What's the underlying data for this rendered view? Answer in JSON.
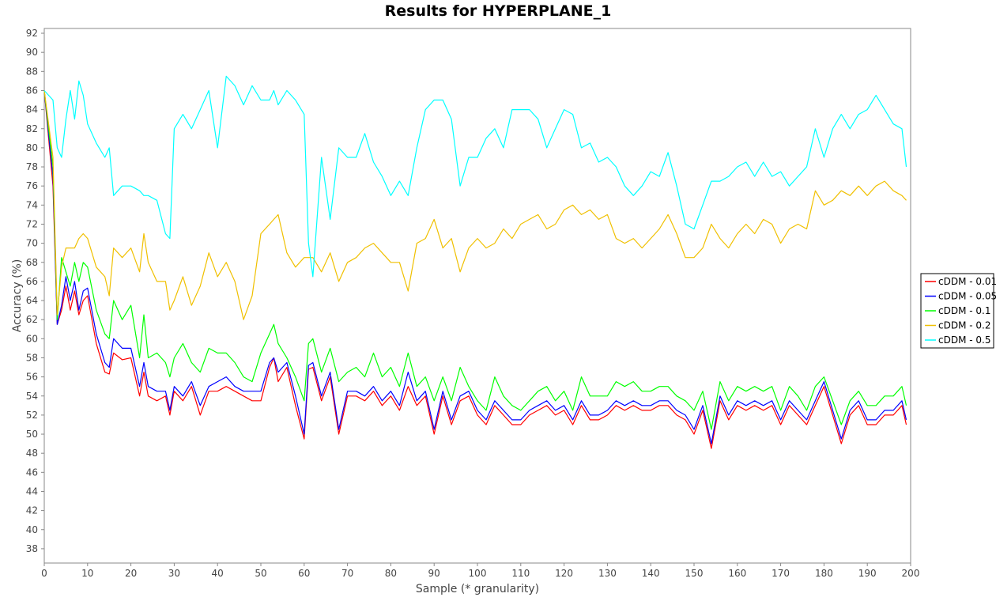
{
  "chart_data": {
    "type": "line",
    "title": "Results for HYPERPLANE_1",
    "xlabel": "Sample (* granularity)",
    "ylabel": "Accuracy (%)",
    "xlim": [
      0,
      200
    ],
    "ylim": [
      36.5,
      92.5
    ],
    "xticks": [
      0,
      10,
      20,
      30,
      40,
      50,
      60,
      70,
      80,
      90,
      100,
      110,
      120,
      130,
      140,
      150,
      160,
      170,
      180,
      190,
      200
    ],
    "yticks": [
      38,
      40,
      42,
      44,
      46,
      48,
      50,
      52,
      54,
      56,
      58,
      60,
      62,
      64,
      66,
      68,
      70,
      72,
      74,
      76,
      78,
      80,
      82,
      84,
      86,
      88,
      90,
      92
    ],
    "grid": false,
    "legend_position": "right",
    "x": [
      0,
      2,
      3,
      4,
      5,
      6,
      7,
      8,
      9,
      10,
      12,
      14,
      15,
      16,
      18,
      20,
      22,
      23,
      24,
      26,
      28,
      29,
      30,
      32,
      34,
      36,
      38,
      40,
      42,
      44,
      46,
      48,
      50,
      52,
      53,
      54,
      56,
      58,
      60,
      61,
      62,
      64,
      66,
      68,
      70,
      72,
      74,
      76,
      78,
      80,
      82,
      84,
      86,
      88,
      90,
      92,
      94,
      96,
      98,
      100,
      102,
      104,
      106,
      108,
      110,
      112,
      114,
      116,
      118,
      120,
      122,
      124,
      126,
      128,
      130,
      132,
      134,
      136,
      138,
      140,
      142,
      144,
      146,
      148,
      150,
      152,
      154,
      156,
      158,
      160,
      162,
      164,
      166,
      168,
      170,
      172,
      174,
      176,
      178,
      180,
      182,
      184,
      186,
      188,
      190,
      192,
      194,
      196,
      198,
      199
    ],
    "series": [
      {
        "name": "cDDM - 0.01",
        "color": "#ff0000",
        "values": [
          86,
          76,
          61.5,
          63,
          65.5,
          63,
          65,
          62.5,
          64,
          64.5,
          59.5,
          56.5,
          56.3,
          58.5,
          57.8,
          58,
          54,
          56.5,
          54,
          53.5,
          54,
          52,
          54.5,
          53.5,
          55,
          52,
          54.5,
          54.5,
          55,
          54.5,
          54,
          53.5,
          53.5,
          57,
          58,
          55.5,
          57,
          53,
          49.5,
          56.8,
          57,
          53.5,
          56,
          50,
          54,
          54,
          53.5,
          54.5,
          53,
          54,
          52.5,
          55,
          53,
          54,
          50,
          54,
          51,
          53.5,
          54,
          52,
          51,
          53,
          52,
          51,
          51,
          52,
          52.5,
          53,
          52,
          52.5,
          51,
          53,
          51.5,
          51.5,
          52,
          53,
          52.5,
          53,
          52.5,
          52.5,
          53,
          53,
          52,
          51.5,
          50,
          52.5,
          48.5,
          53.5,
          51.5,
          53,
          52.5,
          53,
          52.5,
          53,
          51,
          53,
          52,
          51,
          53,
          55,
          52,
          49,
          52,
          53,
          51,
          51,
          52,
          52,
          53,
          51
        ]
      },
      {
        "name": "cDDM - 0.05",
        "color": "#0000ff",
        "values": [
          86,
          77,
          61.5,
          63.5,
          66.5,
          64,
          66,
          63,
          65,
          65.3,
          60.5,
          57.5,
          57,
          60,
          59,
          59,
          55,
          57.5,
          55,
          54.5,
          54.5,
          52.5,
          55,
          54,
          55.5,
          53,
          55,
          55.5,
          56,
          55,
          54.5,
          54.5,
          54.5,
          57.5,
          58,
          56.5,
          57.5,
          54,
          50,
          57.2,
          57.5,
          54,
          56.5,
          50.5,
          54.5,
          54.5,
          54,
          55,
          53.5,
          54.5,
          53,
          56.5,
          53.5,
          54.5,
          50.5,
          54.5,
          51.5,
          54,
          54.5,
          52.5,
          51.5,
          53.5,
          52.5,
          51.5,
          51.5,
          52.5,
          53,
          53.5,
          52.5,
          53,
          51.5,
          53.5,
          52,
          52,
          52.5,
          53.5,
          53,
          53.5,
          53,
          53,
          53.5,
          53.5,
          52.5,
          52,
          50.5,
          53,
          49,
          54,
          52,
          53.5,
          53,
          53.5,
          53,
          53.5,
          51.5,
          53.5,
          52.5,
          51.5,
          53.5,
          55.5,
          52.5,
          49.5,
          52.5,
          53.5,
          51.5,
          51.5,
          52.5,
          52.5,
          53.5,
          51.5
        ]
      },
      {
        "name": "cDDM - 0.1",
        "color": "#00ff00",
        "values": [
          86,
          78,
          62,
          68.5,
          67,
          65.5,
          68,
          66,
          68,
          67.5,
          63,
          60.5,
          60,
          64,
          62,
          63.5,
          58,
          62.5,
          58,
          58.5,
          57.5,
          56,
          58,
          59.5,
          57.5,
          56.5,
          59,
          58.5,
          58.5,
          57.5,
          56,
          55.5,
          58.5,
          60.5,
          61.5,
          59.5,
          58,
          56,
          53.5,
          59.5,
          60,
          56.5,
          59,
          55.5,
          56.5,
          57,
          56,
          58.5,
          56,
          57,
          55,
          58.5,
          55,
          56,
          53.5,
          56,
          53.5,
          57,
          55,
          53.5,
          52.5,
          56,
          54,
          53,
          52.5,
          53.5,
          54.5,
          55,
          53.5,
          54.5,
          52.5,
          56,
          54,
          54,
          54,
          55.5,
          55,
          55.5,
          54.5,
          54.5,
          55,
          55,
          54,
          53.5,
          52.5,
          54.5,
          50.5,
          55.5,
          53.5,
          55,
          54.5,
          55,
          54.5,
          55,
          52.5,
          55,
          54,
          52.5,
          55,
          56,
          53.5,
          51,
          53.5,
          54.5,
          53,
          53,
          54,
          54,
          55,
          53
        ]
      },
      {
        "name": "cDDM - 0.2",
        "color": "#f0c000",
        "values": [
          86,
          79,
          62.5,
          67.5,
          69.5,
          69.5,
          69.5,
          70.5,
          71,
          70.5,
          67.5,
          66.5,
          64.5,
          69.5,
          68.5,
          69.5,
          67,
          71,
          68,
          66,
          66,
          63,
          64,
          66.5,
          63.5,
          65.5,
          69,
          66.5,
          68,
          66,
          62,
          64.5,
          71,
          72,
          72.5,
          73,
          69,
          67.5,
          68.5,
          68.5,
          68.5,
          67,
          69,
          66,
          68,
          68.5,
          69.5,
          70,
          69,
          68,
          68,
          65,
          70,
          70.5,
          72.5,
          69.5,
          70.5,
          67,
          69.5,
          70.5,
          69.5,
          70,
          71.5,
          70.5,
          72,
          72.5,
          73,
          71.5,
          72,
          73.5,
          74,
          73,
          73.5,
          72.5,
          73,
          70.5,
          70,
          70.5,
          69.5,
          70.5,
          71.5,
          73,
          71,
          68.5,
          68.5,
          69.5,
          72,
          70.5,
          69.5,
          71,
          72,
          71,
          72.5,
          72,
          70,
          71.5,
          72,
          71.5,
          75.5,
          74,
          74.5,
          75.5,
          75,
          76,
          75,
          76,
          76.5,
          75.5,
          75,
          74.5
        ]
      },
      {
        "name": "cDDM - 0.5",
        "color": "#00ffff",
        "values": [
          86,
          85,
          80,
          79,
          83,
          86,
          83,
          87,
          85.5,
          82.5,
          80.5,
          79,
          80,
          75,
          76,
          76,
          75.5,
          75,
          75,
          74.5,
          71,
          70.5,
          82,
          83.5,
          82,
          84,
          86,
          80,
          87.5,
          86.5,
          84.5,
          86.5,
          85,
          85,
          86,
          84.5,
          86,
          85,
          83.5,
          70,
          66.5,
          79,
          72.5,
          80,
          79,
          79,
          81.5,
          78.5,
          77,
          75,
          76.5,
          75,
          80,
          84,
          85,
          85,
          83,
          76,
          79,
          79,
          81,
          82,
          80,
          84,
          84,
          84,
          83,
          80,
          82,
          84,
          83.5,
          80,
          80.5,
          78.5,
          79,
          78,
          76,
          75,
          76,
          77.5,
          77,
          79.5,
          76,
          72,
          71.5,
          74,
          76.5,
          76.5,
          77,
          78,
          78.5,
          77,
          78.5,
          77,
          77.5,
          76,
          77,
          78,
          82,
          79,
          82,
          83.5,
          82,
          83.5,
          84,
          85.5,
          84,
          82.5,
          82,
          78
        ]
      }
    ]
  }
}
